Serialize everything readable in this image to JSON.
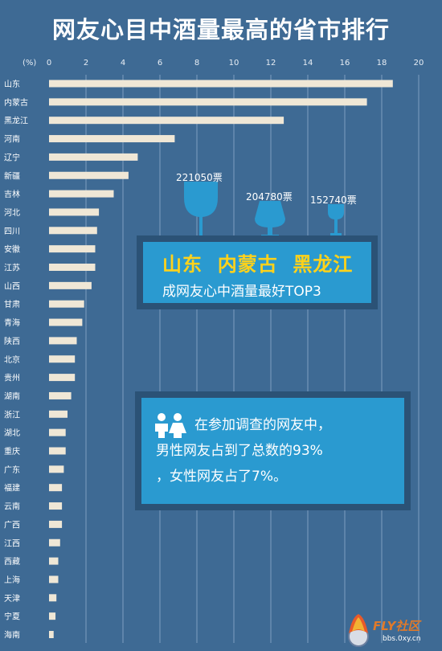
{
  "title": "网友心目中酒量最高的省市排行",
  "chart_data": {
    "type": "bar",
    "orientation": "horizontal",
    "unit_label": "(%)",
    "xlim": [
      0,
      20
    ],
    "ticks": [
      0,
      2,
      4,
      6,
      8,
      10,
      12,
      14,
      16,
      18,
      20
    ],
    "grid": true,
    "categories": [
      "山东",
      "内蒙古",
      "黑龙江",
      "河南",
      "辽宁",
      "新疆",
      "吉林",
      "河北",
      "四川",
      "安徽",
      "江苏",
      "山西",
      "甘肃",
      "青海",
      "陕西",
      "北京",
      "贵州",
      "湖南",
      "浙江",
      "湖北",
      "重庆",
      "广东",
      "福建",
      "云南",
      "广西",
      "江西",
      "西藏",
      "上海",
      "天津",
      "宁夏",
      "海南"
    ],
    "values": [
      18.6,
      17.2,
      12.7,
      6.8,
      4.8,
      4.3,
      3.5,
      2.7,
      2.6,
      2.5,
      2.5,
      2.3,
      1.9,
      1.8,
      1.5,
      1.4,
      1.4,
      1.2,
      1.0,
      0.9,
      0.9,
      0.8,
      0.7,
      0.7,
      0.7,
      0.6,
      0.5,
      0.5,
      0.4,
      0.35,
      0.25
    ]
  },
  "votes": [
    "221050票",
    "204780票",
    "152740票"
  ],
  "top3": {
    "names": "山东  内蒙古  黑龙江",
    "subtitle": "成网友心中酒量最好TOP3"
  },
  "gender": {
    "line1": "在参加调查的网友中，",
    "line2": "男性网友占到了总数的93%",
    "line3": "，女性网友占了7%。"
  },
  "colors": {
    "background": "#3e6a94",
    "bar": "#efe7d6",
    "panel": "#2a9ad0",
    "highlight": "#ffd21a"
  },
  "logo": {
    "brand": "FLY社区",
    "url": "bbs.0xy.cn"
  }
}
